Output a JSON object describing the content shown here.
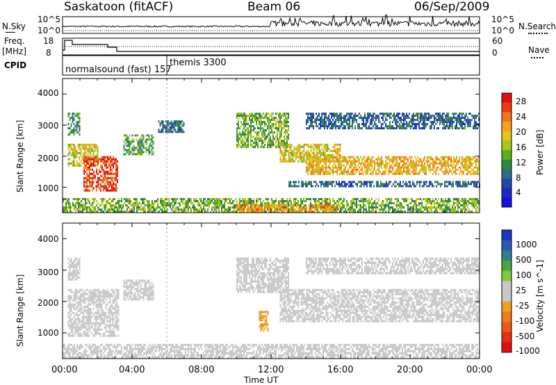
{
  "header": {
    "station": "Saskatoon (fitACF)",
    "beam": "Beam 06",
    "date": "06/Sep/2009"
  },
  "strip": {
    "nsky_label": "N.Sky",
    "nsky_ticks": [
      "10^5",
      "10^0"
    ],
    "nsearch_label": "N.Search",
    "nsearch_ticks": [
      "10^5",
      "10^0"
    ],
    "freq_label_line1": "Freq.",
    "freq_label_line2": "[MHz]",
    "freq_ticks": [
      "18",
      "8"
    ],
    "nave_label": "Nave",
    "nave_ticks": [
      "60",
      "0"
    ],
    "cpid_label": "CPID",
    "cpid_modes": [
      {
        "name": "normalsound (fast) 157",
        "start_hour": 0.0,
        "end_hour": 6.0
      },
      {
        "name": "themis 3300",
        "start_hour": 6.0,
        "end_hour": 24.0
      }
    ]
  },
  "panels": {
    "ylabel": "Slant Range [km]",
    "yticks": [
      "4000",
      "3000",
      "2000",
      "1000"
    ],
    "xticks": [
      "00:00",
      "04:00",
      "08:00",
      "12:00",
      "16:00",
      "20:00",
      "00:00"
    ],
    "xlabel": "Time UT"
  },
  "power_colorbar": {
    "label": "Power [dB]",
    "ticks": [
      "28",
      "24",
      "20",
      "16",
      "12",
      "8",
      "4"
    ],
    "colors": [
      "#e01010",
      "#f03a14",
      "#f5731a",
      "#f5a31c",
      "#e6c21c",
      "#a8c61c",
      "#58b01c",
      "#2e8a3c",
      "#2d6e86",
      "#2446a8",
      "#1e28c8",
      "#1010e6"
    ]
  },
  "velocity_colorbar": {
    "label": "Velocity [m s^-1]",
    "ticks": [
      "1000",
      "500",
      "100",
      "25",
      "-25",
      "-100",
      "-500",
      "-1000"
    ],
    "colors": [
      "#1c34c8",
      "#2a5ab0",
      "#2f7f98",
      "#4ea63c",
      "#7ccc3a",
      "#c8c8c8",
      "#c8c8c8",
      "#f0a020",
      "#f07c1c",
      "#ec5a18",
      "#e6300e",
      "#e01010"
    ]
  },
  "chart_data": [
    {
      "type": "heatmap",
      "title": "Saskatoon (fitACF) Beam 06 06/Sep/2009",
      "quantity": "Power",
      "ylabel": "Slant Range [km]",
      "xlabel": "Time UT",
      "xlim": [
        0,
        24
      ],
      "ylim": [
        180,
        4500
      ],
      "clim": [
        0,
        30
      ],
      "units": "dB",
      "echo_regions": [
        {
          "t0": 0.3,
          "t1": 1.0,
          "r0": 2700,
          "r1": 3400,
          "power": 10
        },
        {
          "t0": 0.3,
          "t1": 2.0,
          "r0": 1700,
          "r1": 2400,
          "power": 18
        },
        {
          "t0": 1.2,
          "t1": 3.2,
          "r0": 900,
          "r1": 2000,
          "power": 26
        },
        {
          "t0": 3.5,
          "t1": 5.2,
          "r0": 2050,
          "r1": 2700,
          "power": 12
        },
        {
          "t0": 5.5,
          "t1": 7.0,
          "r0": 2750,
          "r1": 3150,
          "power": 8
        },
        {
          "t0": 10.0,
          "t1": 13.0,
          "r0": 2300,
          "r1": 3400,
          "power": 14
        },
        {
          "t0": 12.5,
          "t1": 16.0,
          "r0": 1800,
          "r1": 2400,
          "power": 18
        },
        {
          "t0": 14.0,
          "t1": 24.0,
          "r0": 1400,
          "r1": 2000,
          "power": 20
        },
        {
          "t0": 14.0,
          "t1": 24.0,
          "r0": 2900,
          "r1": 3400,
          "power": 8
        },
        {
          "t0": 13.0,
          "t1": 24.0,
          "r0": 1000,
          "r1": 1200,
          "power": 8
        },
        {
          "t0": 0.0,
          "t1": 24.0,
          "r0": 200,
          "r1": 650,
          "power": 14
        },
        {
          "t0": 10.0,
          "t1": 16.0,
          "r0": 200,
          "r1": 450,
          "power": 22
        }
      ]
    },
    {
      "type": "heatmap",
      "quantity": "Velocity",
      "ylabel": "Slant Range [km]",
      "xlabel": "Time UT",
      "xlim": [
        0,
        24
      ],
      "ylim": [
        180,
        4500
      ],
      "clim": [
        -1000,
        1000
      ],
      "units": "m s^-1",
      "echo_regions": [
        {
          "t0": 0.3,
          "t1": 1.0,
          "r0": 2700,
          "r1": 3400,
          "velocity": 0
        },
        {
          "t0": 0.3,
          "t1": 3.2,
          "r0": 900,
          "r1": 2400,
          "velocity": 60
        },
        {
          "t0": 3.5,
          "t1": 5.2,
          "r0": 2050,
          "r1": 2700,
          "velocity": 0
        },
        {
          "t0": 10.0,
          "t1": 13.0,
          "r0": 2300,
          "r1": 3400,
          "velocity": 0
        },
        {
          "t0": 11.3,
          "t1": 11.8,
          "r0": 1100,
          "r1": 1700,
          "velocity": -300
        },
        {
          "t0": 12.5,
          "t1": 24.0,
          "r0": 1400,
          "r1": 2400,
          "velocity": 0
        },
        {
          "t0": 14.0,
          "t1": 24.0,
          "r0": 2900,
          "r1": 3400,
          "velocity": 0
        },
        {
          "t0": 0.0,
          "t1": 24.0,
          "r0": 200,
          "r1": 650,
          "velocity": -60
        }
      ]
    }
  ]
}
